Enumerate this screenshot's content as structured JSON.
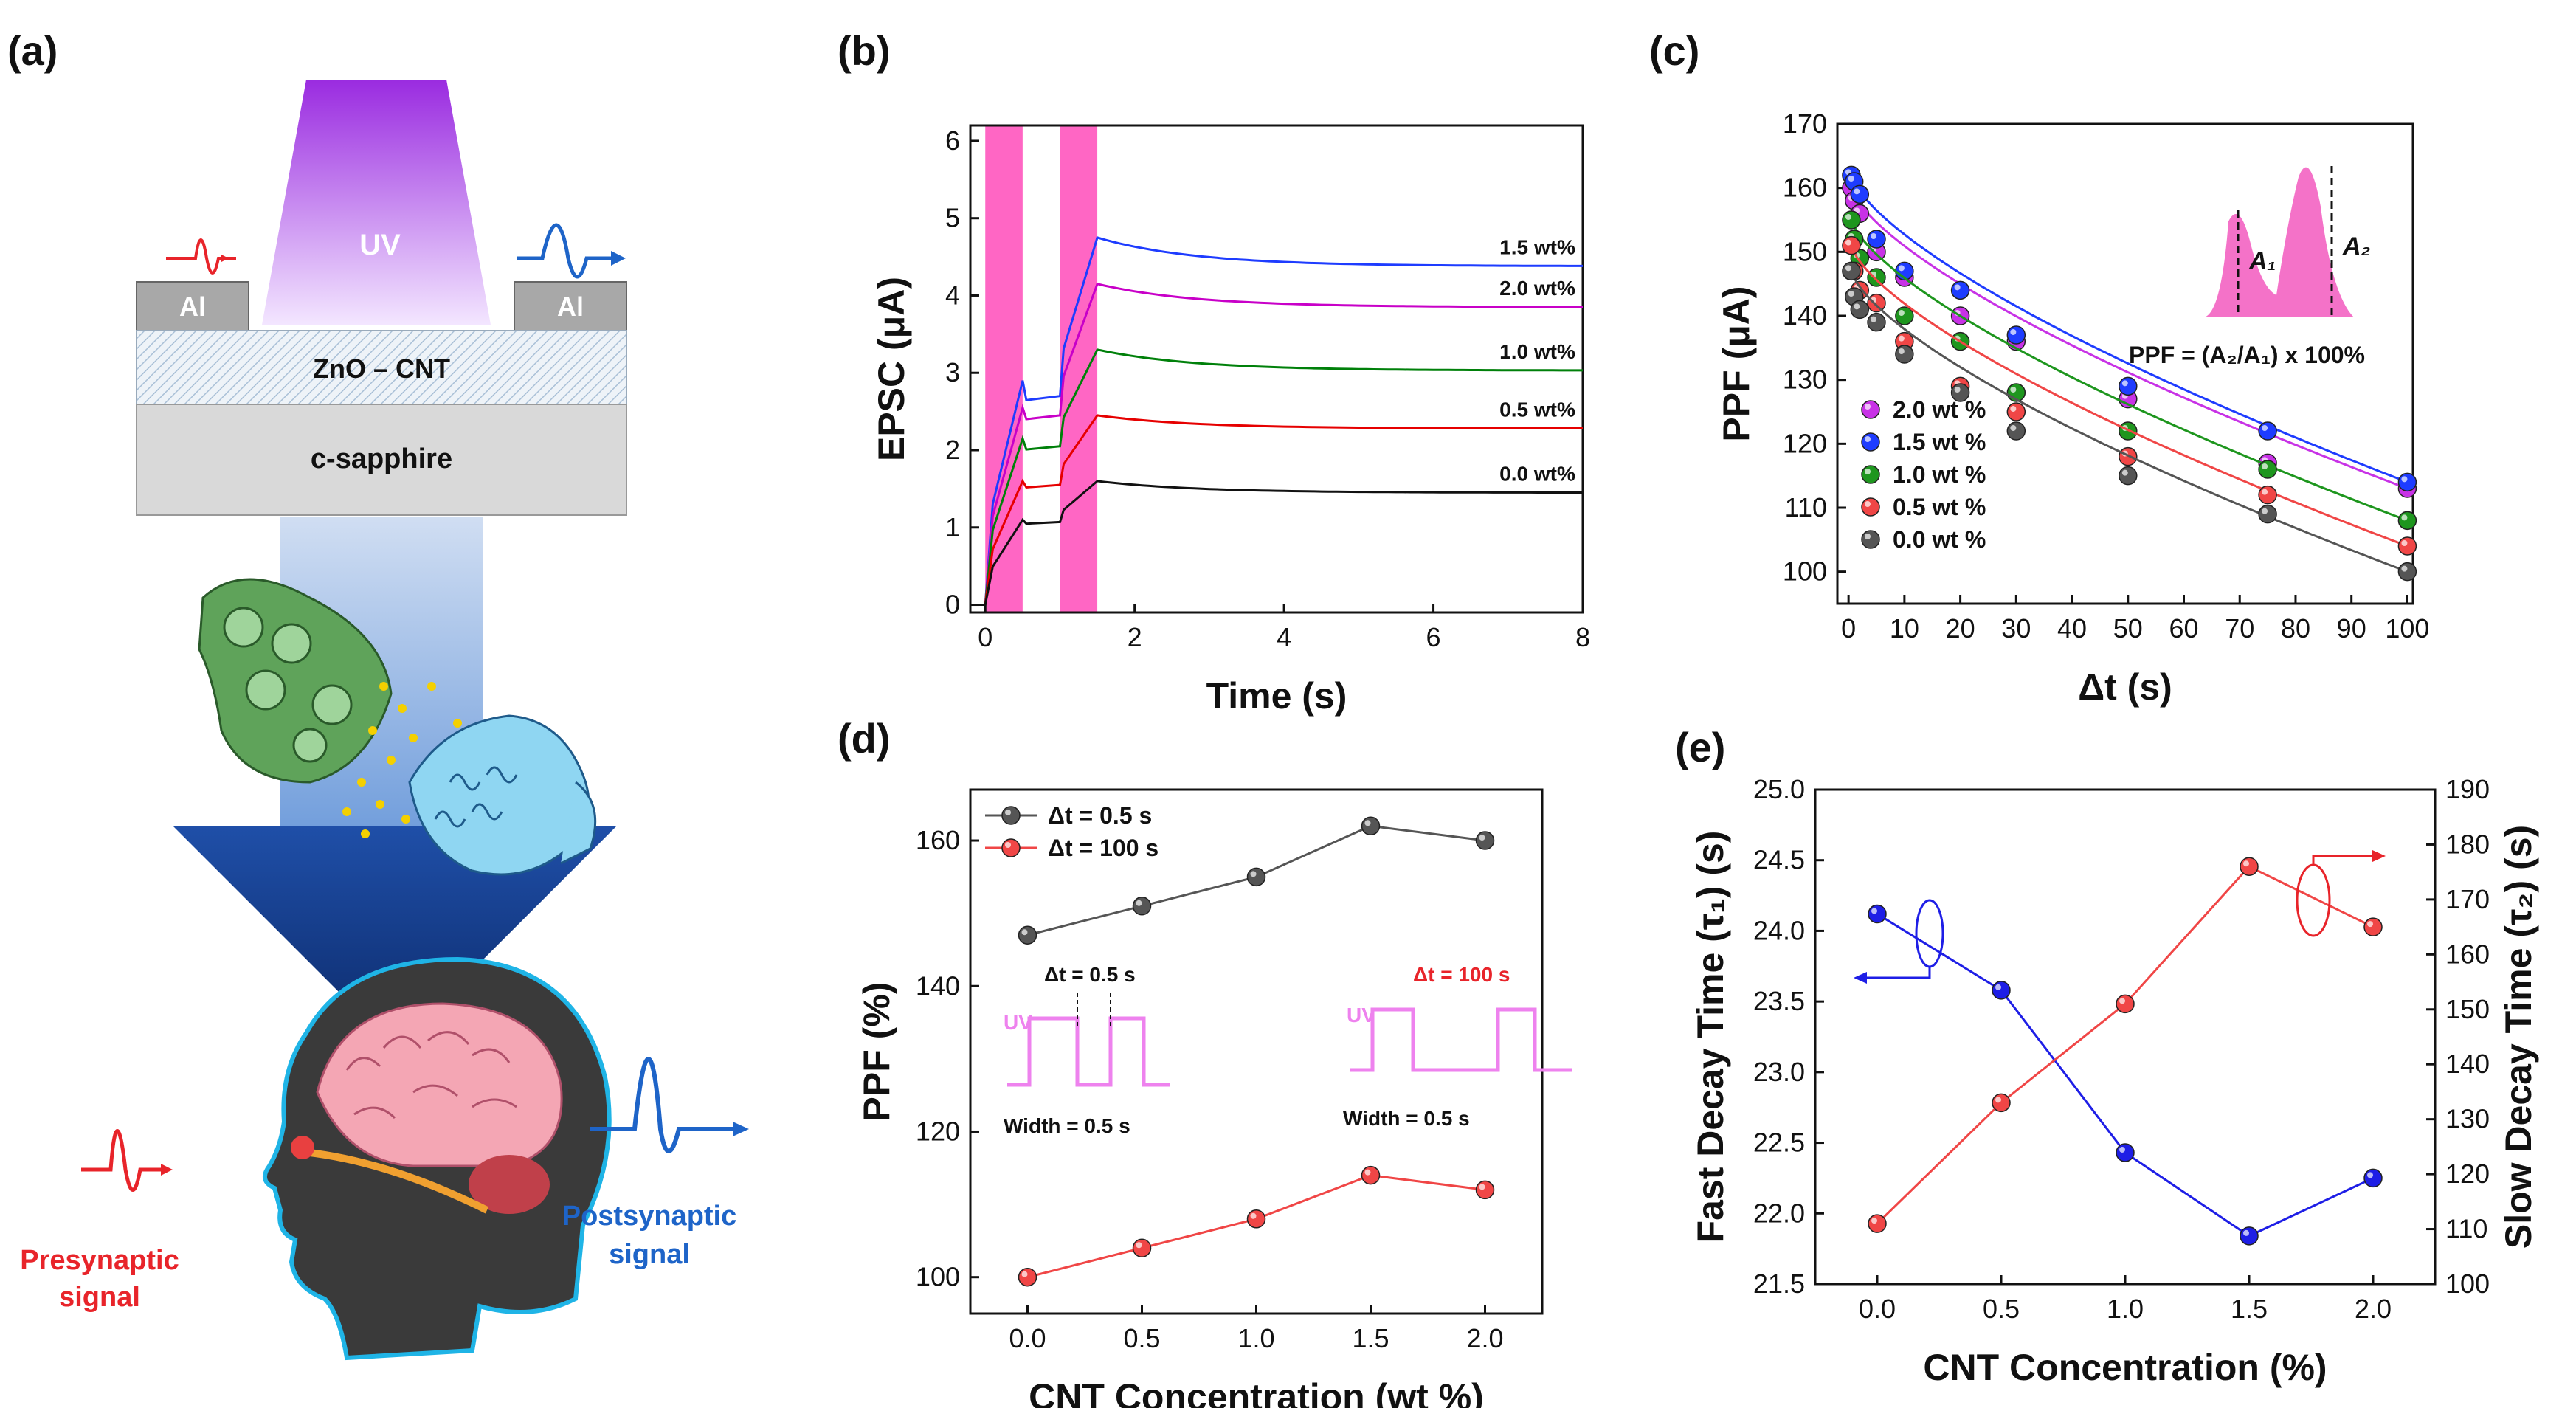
{
  "figure": {
    "panel_labels": [
      "(a)",
      "(b)",
      "(c)",
      "(d)",
      "(e)"
    ],
    "schematic": {
      "uv": "UV",
      "electrode_left": "Al",
      "electrode_right": "Al",
      "film": "ZnO – CNT",
      "substrate": "c-sapphire",
      "pre_label_1": "Presynaptic",
      "pre_label_2": "signal",
      "post_label_1": "Postsynaptic",
      "post_label_2": "signal"
    },
    "colors": {
      "pink": "#ff69c8",
      "red": "#e8242a",
      "blue": "#1e64c8"
    }
  },
  "chart_data": [
    {
      "id": "b",
      "type": "line",
      "xlabel": "Time (s)",
      "ylabel": "EPSC (μA)",
      "xlim": [
        -0.2,
        8
      ],
      "ylim": [
        -0.1,
        6.2
      ],
      "xticks": [
        0,
        2,
        4,
        6,
        8
      ],
      "yticks": [
        0,
        1,
        2,
        3,
        4,
        5,
        6
      ],
      "uv_pulses": [
        [
          0,
          0.5
        ],
        [
          1.0,
          1.5
        ]
      ],
      "series": [
        {
          "name": "1.5 wt%",
          "color": "#1e3cff",
          "peak1": 2.9,
          "trough1": 2.7,
          "peak2": 4.75,
          "end": 4.38
        },
        {
          "name": "2.0 wt%",
          "color": "#c800c8",
          "peak1": 2.55,
          "trough1": 2.45,
          "peak2": 4.15,
          "end": 3.85
        },
        {
          "name": "1.0 wt%",
          "color": "#00800a",
          "peak1": 2.15,
          "trough1": 2.05,
          "peak2": 3.3,
          "end": 3.03
        },
        {
          "name": "0.5 wt%",
          "color": "#e60000",
          "peak1": 1.6,
          "trough1": 1.55,
          "peak2": 2.45,
          "end": 2.28
        },
        {
          "name": "0.0 wt%",
          "color": "#111111",
          "peak1": 1.1,
          "trough1": 1.07,
          "peak2": 1.6,
          "end": 1.45
        }
      ]
    },
    {
      "id": "c",
      "type": "scatter",
      "xlabel": "Δt (s)",
      "ylabel": "PPF (μA)",
      "xlim": [
        -2,
        101
      ],
      "ylim": [
        95,
        170
      ],
      "xticks": [
        0,
        10,
        20,
        30,
        40,
        50,
        60,
        70,
        80,
        90,
        100
      ],
      "yticks": [
        100,
        110,
        120,
        130,
        140,
        150,
        160,
        170
      ],
      "formula": "PPF = (A₂/A₁) x 100%",
      "inset_labels": [
        "A₁",
        "A₂"
      ],
      "x": [
        0.5,
        1,
        2,
        5,
        10,
        20,
        30,
        50,
        75,
        100
      ],
      "series": [
        {
          "name": "2.0 wt %",
          "color": "#c832e6",
          "values": [
            160,
            158,
            156,
            150,
            146,
            140,
            136,
            127,
            117,
            113
          ]
        },
        {
          "name": "1.5 wt %",
          "color": "#1e3cff",
          "values": [
            162,
            161,
            159,
            152,
            147,
            144,
            137,
            129,
            122,
            114
          ]
        },
        {
          "name": "1.0 wt %",
          "color": "#1e961e",
          "values": [
            155,
            152,
            149,
            146,
            140,
            136,
            128,
            122,
            116,
            108
          ]
        },
        {
          "name": "0.5 wt %",
          "color": "#f04646",
          "values": [
            151,
            147,
            144,
            142,
            136,
            129,
            125,
            118,
            112,
            104
          ]
        },
        {
          "name": "0.0 wt %",
          "color": "#555555",
          "values": [
            147,
            143,
            141,
            139,
            134,
            128,
            122,
            115,
            109,
            100
          ]
        }
      ]
    },
    {
      "id": "d",
      "type": "line",
      "xlabel": "CNT Concentration (wt %)",
      "ylabel": "PPF (%)",
      "xlim": [
        -0.25,
        2.25
      ],
      "ylim": [
        95,
        167
      ],
      "xticks": [
        0.0,
        0.5,
        1.0,
        1.5,
        2.0
      ],
      "yticks": [
        100,
        120,
        140,
        160
      ],
      "categories": [
        0.0,
        0.5,
        1.0,
        1.5,
        2.0
      ],
      "series": [
        {
          "name": "Δt = 0.5 s",
          "color": "#555555",
          "values": [
            147,
            151,
            155,
            162,
            160
          ]
        },
        {
          "name": "Δt = 100 s",
          "color": "#f04646",
          "values": [
            100,
            104,
            108,
            114,
            112
          ]
        }
      ],
      "inset_left": {
        "dt": "Δt = 0.5 s",
        "uv": "UV",
        "width": "Width = 0.5 s"
      },
      "inset_right": {
        "dt": "Δt = 100 s",
        "uv": "UV",
        "width": "Width = 0.5 s"
      }
    },
    {
      "id": "e",
      "type": "line",
      "xlabel": "CNT Concentration (%)",
      "ylabel_left": "Fast Decay Time (τ₁) (s)",
      "ylabel_right": "Slow Decay Time (τ₂) (s)",
      "xlim": [
        -0.25,
        2.25
      ],
      "ylim_left": [
        21.5,
        25.0
      ],
      "ylim_right": [
        100,
        190
      ],
      "xticks": [
        0.0,
        0.5,
        1.0,
        1.5,
        2.0
      ],
      "yticks_left": [
        21.5,
        22.0,
        22.5,
        23.0,
        23.5,
        24.0,
        24.5,
        25.0
      ],
      "yticks_right": [
        100,
        110,
        120,
        130,
        140,
        150,
        160,
        170,
        180,
        190
      ],
      "categories": [
        0.0,
        0.5,
        1.0,
        1.5,
        2.0
      ],
      "series": [
        {
          "name": "τ1",
          "axis": "left",
          "color": "#1e1ee6",
          "values": [
            24.12,
            23.58,
            22.43,
            21.84,
            22.25
          ]
        },
        {
          "name": "τ2",
          "axis": "right",
          "color": "#f04646",
          "values": [
            111,
            133,
            151,
            176,
            165
          ]
        }
      ]
    }
  ]
}
